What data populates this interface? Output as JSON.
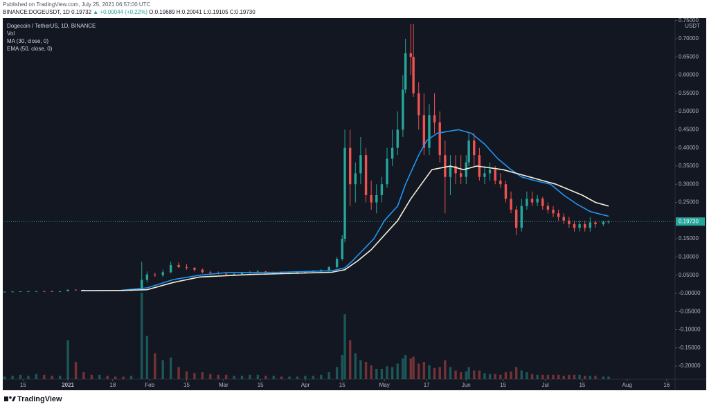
{
  "header": {
    "published": "Published on TradingView.com, July 25, 2021 06:57:00 UTC",
    "symbol": "BINANCE:DOGEUSDT, 1D",
    "last": "0.19732",
    "change": "▲ +0.00044 (+0.22%)",
    "open": "O:0.19689",
    "high": "H:0.20041",
    "low": "L:0.19105",
    "close": "C:0.19730"
  },
  "footer": {
    "logo": "TradingView"
  },
  "chart_data": {
    "type": "candlestick",
    "title": "Dogecoin / TetherUS, 1D, BINANCE",
    "volume_name": "Vol",
    "y_label": "USDT",
    "up_color": "#26a69a",
    "down_color": "#ef5350",
    "x": [
      -24,
      -21,
      -18,
      -15,
      -12,
      -9,
      -6,
      -3,
      0,
      3,
      6,
      9,
      12,
      15,
      18,
      21,
      24,
      28,
      30,
      33,
      36,
      39,
      42,
      45,
      48,
      51,
      54,
      57,
      60,
      63,
      66,
      69,
      72,
      75,
      78,
      81,
      84,
      87,
      90,
      93,
      96,
      99,
      102,
      104,
      105,
      107,
      109,
      111,
      113,
      115,
      117,
      119,
      121,
      123,
      125,
      127,
      128,
      130,
      131,
      133,
      135,
      137,
      139,
      141,
      143,
      145,
      147,
      149,
      151,
      152,
      154,
      156,
      158,
      160,
      162,
      164,
      166,
      168,
      170,
      172,
      174,
      176,
      178,
      180,
      182,
      184,
      186,
      188,
      190,
      192,
      194,
      196,
      198,
      200,
      203,
      205
    ],
    "open": [
      0.0045,
      0.0047,
      0.005,
      0.0056,
      0.0057,
      0.006,
      0.0058,
      0.0055,
      0.0057,
      0.0099,
      0.0095,
      0.0092,
      0.0082,
      0.009,
      0.0086,
      0.008,
      0.0078,
      0.0085,
      0.037,
      0.052,
      0.05,
      0.058,
      0.078,
      0.072,
      0.07,
      0.065,
      0.058,
      0.056,
      0.054,
      0.052,
      0.053,
      0.056,
      0.058,
      0.06,
      0.057,
      0.058,
      0.055,
      0.056,
      0.058,
      0.059,
      0.061,
      0.064,
      0.072,
      0.095,
      0.15,
      0.4,
      0.3,
      0.33,
      0.38,
      0.27,
      0.25,
      0.27,
      0.3,
      0.37,
      0.4,
      0.45,
      0.56,
      0.66,
      0.65,
      0.55,
      0.49,
      0.4,
      0.49,
      0.47,
      0.38,
      0.32,
      0.35,
      0.33,
      0.32,
      0.36,
      0.42,
      0.38,
      0.32,
      0.33,
      0.34,
      0.31,
      0.3,
      0.26,
      0.23,
      0.18,
      0.24,
      0.26,
      0.25,
      0.26,
      0.24,
      0.23,
      0.22,
      0.21,
      0.2,
      0.19,
      0.18,
      0.19,
      0.18,
      0.195,
      0.19,
      0.19689
    ],
    "high": [
      0.005,
      0.0055,
      0.0058,
      0.006,
      0.0062,
      0.0065,
      0.0063,
      0.0062,
      0.0105,
      0.011,
      0.01,
      0.0095,
      0.0095,
      0.0095,
      0.009,
      0.0085,
      0.009,
      0.087,
      0.06,
      0.057,
      0.065,
      0.087,
      0.085,
      0.08,
      0.072,
      0.068,
      0.062,
      0.06,
      0.058,
      0.056,
      0.058,
      0.062,
      0.065,
      0.062,
      0.06,
      0.06,
      0.058,
      0.06,
      0.062,
      0.064,
      0.066,
      0.075,
      0.1,
      0.16,
      0.45,
      0.45,
      0.36,
      0.43,
      0.4,
      0.31,
      0.3,
      0.32,
      0.4,
      0.45,
      0.5,
      0.6,
      0.7,
      0.74,
      0.74,
      0.58,
      0.55,
      0.52,
      0.55,
      0.5,
      0.42,
      0.38,
      0.38,
      0.38,
      0.38,
      0.44,
      0.44,
      0.4,
      0.35,
      0.36,
      0.35,
      0.33,
      0.31,
      0.28,
      0.24,
      0.26,
      0.28,
      0.28,
      0.27,
      0.265,
      0.25,
      0.24,
      0.23,
      0.22,
      0.21,
      0.2,
      0.2,
      0.2,
      0.21,
      0.2,
      0.2,
      0.20041
    ],
    "low": [
      0.004,
      0.0045,
      0.0048,
      0.005,
      0.0054,
      0.0055,
      0.0052,
      0.005,
      0.0052,
      0.0085,
      0.0085,
      0.0075,
      0.008,
      0.0082,
      0.0075,
      0.0072,
      0.0075,
      0.0075,
      0.03,
      0.045,
      0.045,
      0.055,
      0.07,
      0.065,
      0.06,
      0.055,
      0.05,
      0.052,
      0.048,
      0.05,
      0.05,
      0.052,
      0.055,
      0.055,
      0.052,
      0.054,
      0.052,
      0.053,
      0.055,
      0.056,
      0.058,
      0.06,
      0.07,
      0.09,
      0.14,
      0.24,
      0.25,
      0.3,
      0.25,
      0.23,
      0.22,
      0.25,
      0.29,
      0.35,
      0.38,
      0.43,
      0.55,
      0.6,
      0.54,
      0.45,
      0.38,
      0.38,
      0.44,
      0.36,
      0.22,
      0.27,
      0.3,
      0.3,
      0.3,
      0.35,
      0.35,
      0.31,
      0.3,
      0.31,
      0.3,
      0.29,
      0.25,
      0.22,
      0.16,
      0.17,
      0.23,
      0.24,
      0.24,
      0.23,
      0.22,
      0.21,
      0.2,
      0.19,
      0.18,
      0.17,
      0.17,
      0.17,
      0.17,
      0.18,
      0.185,
      0.19105
    ],
    "close": [
      0.0047,
      0.005,
      0.0056,
      0.0057,
      0.006,
      0.0058,
      0.0055,
      0.0057,
      0.0099,
      0.0095,
      0.0092,
      0.0082,
      0.009,
      0.0086,
      0.008,
      0.0078,
      0.0085,
      0.037,
      0.052,
      0.05,
      0.058,
      0.078,
      0.072,
      0.07,
      0.065,
      0.058,
      0.056,
      0.054,
      0.052,
      0.053,
      0.056,
      0.058,
      0.06,
      0.057,
      0.058,
      0.055,
      0.056,
      0.058,
      0.059,
      0.061,
      0.064,
      0.072,
      0.095,
      0.15,
      0.4,
      0.3,
      0.33,
      0.38,
      0.27,
      0.25,
      0.27,
      0.3,
      0.37,
      0.4,
      0.45,
      0.56,
      0.66,
      0.65,
      0.55,
      0.49,
      0.4,
      0.49,
      0.47,
      0.38,
      0.32,
      0.35,
      0.33,
      0.32,
      0.36,
      0.42,
      0.38,
      0.32,
      0.33,
      0.34,
      0.31,
      0.3,
      0.26,
      0.23,
      0.18,
      0.24,
      0.26,
      0.25,
      0.26,
      0.24,
      0.23,
      0.22,
      0.21,
      0.2,
      0.19,
      0.18,
      0.19,
      0.18,
      0.195,
      0.19,
      0.19689,
      0.1973
    ],
    "volume": [
      3,
      4,
      5,
      4,
      6,
      5,
      4,
      4,
      45,
      20,
      8,
      5,
      5,
      4,
      3,
      3,
      4,
      100,
      50,
      30,
      22,
      25,
      14,
      9,
      7,
      8,
      6,
      5,
      5,
      4,
      4,
      5,
      5,
      4,
      4,
      3,
      3,
      3,
      4,
      4,
      5,
      8,
      14,
      28,
      75,
      45,
      30,
      22,
      20,
      16,
      12,
      12,
      15,
      14,
      18,
      24,
      28,
      24,
      26,
      18,
      20,
      16,
      13,
      14,
      22,
      14,
      10,
      8,
      9,
      14,
      10,
      10,
      7,
      6,
      6,
      5,
      8,
      9,
      14,
      10,
      8,
      6,
      5,
      5,
      5,
      5,
      5,
      4,
      5,
      5,
      5,
      4,
      4,
      4,
      3,
      3
    ],
    "series": [
      {
        "name": "MA (30, close, 0)",
        "color": "#2196f3",
        "x": [
          5,
          20,
          30,
          40,
          50,
          60,
          80,
          100,
          105,
          108,
          112,
          116,
          120,
          125,
          128,
          133,
          136,
          140,
          148,
          153,
          158,
          163,
          168,
          172,
          177,
          183,
          188,
          193,
          198,
          205
        ],
        "values": [
          0.0075,
          0.008,
          0.015,
          0.038,
          0.05,
          0.057,
          0.058,
          0.062,
          0.07,
          0.09,
          0.12,
          0.15,
          0.2,
          0.24,
          0.3,
          0.38,
          0.42,
          0.44,
          0.45,
          0.44,
          0.41,
          0.37,
          0.34,
          0.32,
          0.31,
          0.3,
          0.27,
          0.245,
          0.225,
          0.212
        ]
      },
      {
        "name": "EMA (50, close, 0)",
        "color": "#f4efd9",
        "x": [
          5,
          20,
          30,
          40,
          50,
          70,
          100,
          105,
          110,
          115,
          120,
          125,
          130,
          134,
          138,
          145,
          150,
          155,
          160,
          165,
          170,
          175,
          180,
          185,
          190,
          195,
          200,
          205
        ],
        "values": [
          0.0072,
          0.0078,
          0.01,
          0.03,
          0.045,
          0.052,
          0.058,
          0.065,
          0.09,
          0.12,
          0.16,
          0.2,
          0.26,
          0.3,
          0.34,
          0.35,
          0.34,
          0.35,
          0.345,
          0.34,
          0.33,
          0.32,
          0.31,
          0.3,
          0.285,
          0.27,
          0.25,
          0.24
        ]
      }
    ],
    "last_price": {
      "value": 0.1973,
      "label": "0.19730"
    },
    "xlim": [
      -24.7,
      230.2
    ],
    "xticks": [
      {
        "value": -17,
        "label": "15"
      },
      {
        "value": 0,
        "label": "2021"
      },
      {
        "value": 17,
        "label": "18"
      },
      {
        "value": 31,
        "label": "Feb"
      },
      {
        "value": 45,
        "label": "15"
      },
      {
        "value": 59,
        "label": "Mar"
      },
      {
        "value": 73,
        "label": "15"
      },
      {
        "value": 90,
        "label": "Apr"
      },
      {
        "value": 104,
        "label": "15"
      },
      {
        "value": 120,
        "label": "May"
      },
      {
        "value": 136,
        "label": "17"
      },
      {
        "value": 151,
        "label": "Jun"
      },
      {
        "value": 165,
        "label": "15"
      },
      {
        "value": 181,
        "label": "Jul"
      },
      {
        "value": 195,
        "label": "15"
      },
      {
        "value": 212,
        "label": "Aug"
      },
      {
        "value": 227,
        "label": "16"
      }
    ],
    "ylim": [
      -0.236,
      0.757
    ],
    "yticks": [
      {
        "value": -0.2,
        "label": "-0.20000"
      },
      {
        "value": -0.15,
        "label": "-0.15000"
      },
      {
        "value": -0.1,
        "label": "-0.10000"
      },
      {
        "value": -0.05,
        "label": "-0.05000"
      },
      {
        "value": 0,
        "label": "-0.00000"
      },
      {
        "value": 0.05,
        "label": "0.05000"
      },
      {
        "value": 0.1,
        "label": "0.10000"
      },
      {
        "value": 0.15,
        "label": "0.15000"
      },
      {
        "value": 0.25,
        "label": "0.25000"
      },
      {
        "value": 0.3,
        "label": "0.30000"
      },
      {
        "value": 0.35,
        "label": "0.35000"
      },
      {
        "value": 0.4,
        "label": "0.40000"
      },
      {
        "value": 0.45,
        "label": "0.45000"
      },
      {
        "value": 0.5,
        "label": "0.50000"
      },
      {
        "value": 0.55,
        "label": "0.55000"
      },
      {
        "value": 0.6,
        "label": "0.60000"
      },
      {
        "value": 0.65,
        "label": "0.65000"
      },
      {
        "value": 0.7,
        "label": "0.70000"
      },
      {
        "value": 0.75,
        "label": "0.75000"
      }
    ]
  }
}
